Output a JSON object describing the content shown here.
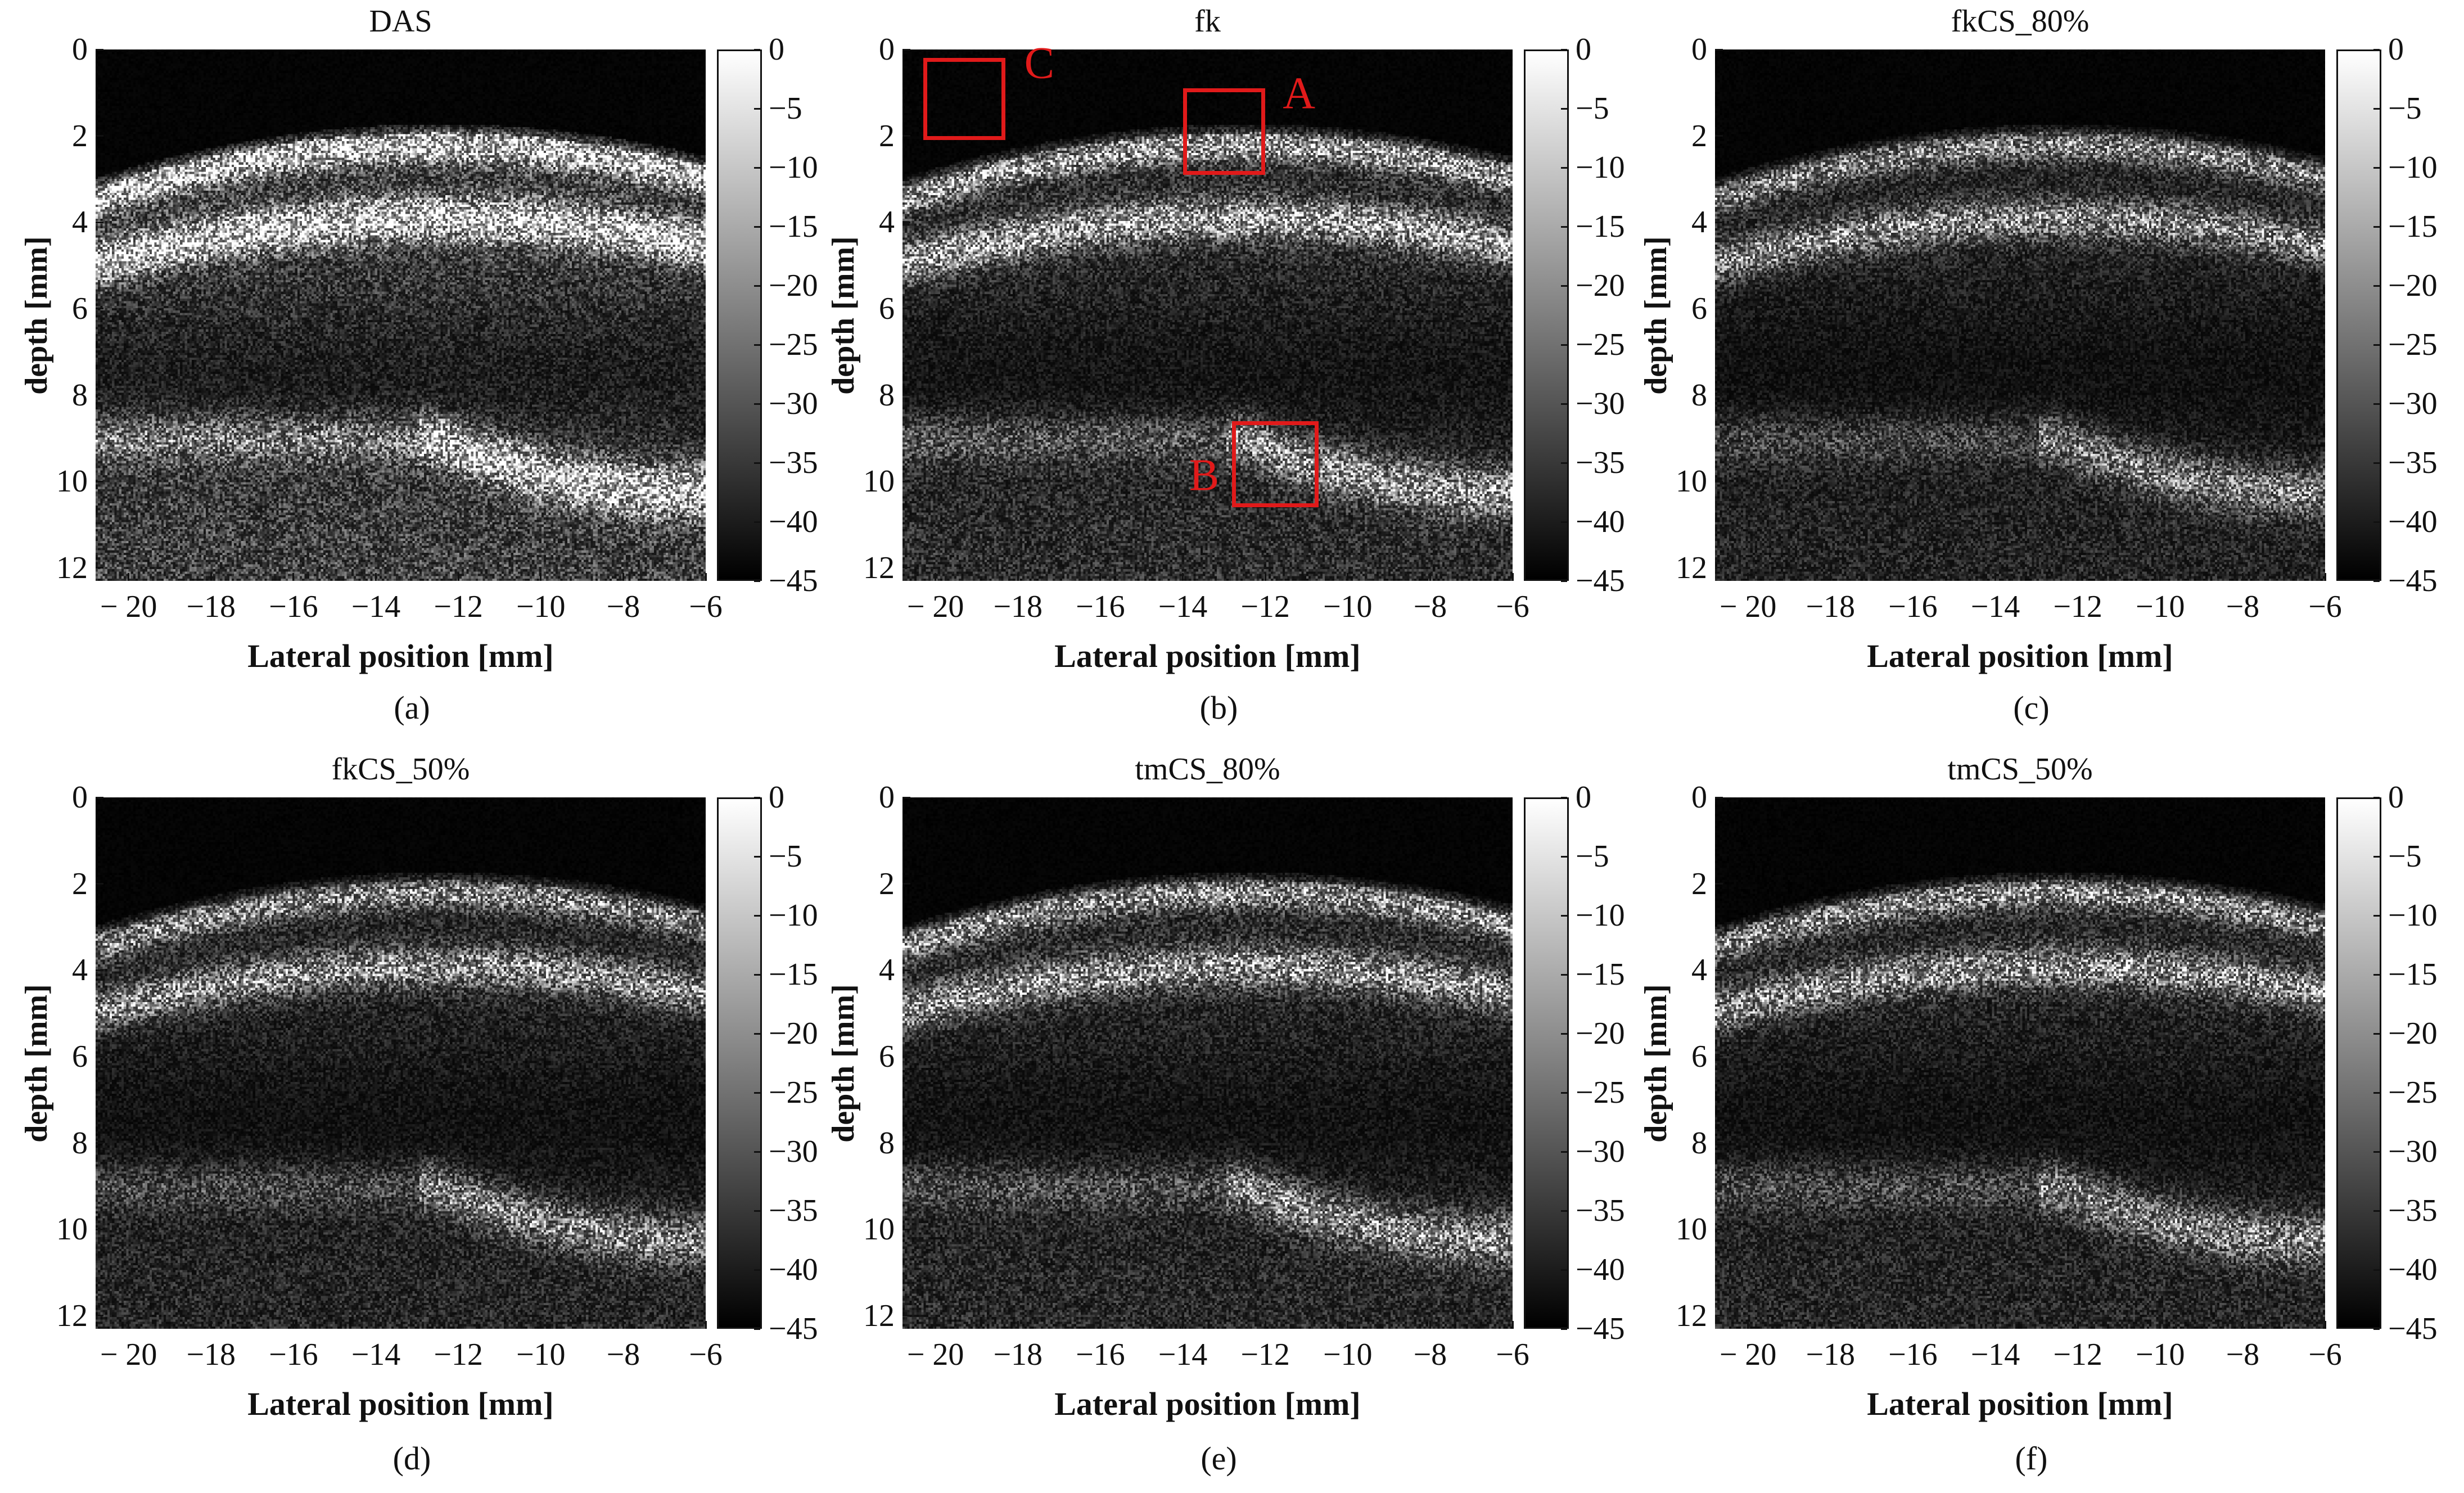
{
  "chart_data": [
    {
      "panel": "(a)",
      "title": "DAS",
      "type": "heatmap",
      "xlabel": "Lateral position [mm]",
      "ylabel": "depth [mm]",
      "xlim": [
        -20.8,
        -6
      ],
      "ylim": [
        12.3,
        0
      ],
      "xticks": [
        -20,
        -18,
        -16,
        -14,
        -12,
        -10,
        -8,
        -6
      ],
      "xtick_labels": [
        "− 20",
        "−18",
        "−16",
        "−14",
        "−12",
        "−10",
        "−8",
        "−6"
      ],
      "yticks": [
        0,
        2,
        4,
        6,
        8,
        10,
        12
      ],
      "ytick_labels": [
        "0",
        "2",
        "4",
        "6",
        "8",
        "10",
        "12"
      ],
      "colorbar": {
        "range": [
          -45,
          0
        ],
        "ticks": [
          0,
          -5,
          -10,
          -15,
          -20,
          -25,
          -30,
          -35,
          -40,
          -45
        ],
        "tick_labels": [
          "0",
          "−5",
          "−10",
          "−15",
          "−20",
          "−25",
          "−30",
          "−35",
          "−40",
          "−45"
        ]
      },
      "colormap": "gray"
    },
    {
      "panel": "(b)",
      "title": "fk",
      "type": "heatmap",
      "xlabel": "Lateral position [mm]",
      "ylabel": "depth [mm]",
      "xlim": [
        -20.8,
        -6
      ],
      "ylim": [
        12.3,
        0
      ],
      "xticks": [
        -20,
        -18,
        -16,
        -14,
        -12,
        -10,
        -8,
        -6
      ],
      "xtick_labels": [
        "− 20",
        "−18",
        "−16",
        "−14",
        "−12",
        "−10",
        "−8",
        "−6"
      ],
      "yticks": [
        0,
        2,
        4,
        6,
        8,
        10,
        12
      ],
      "ytick_labels": [
        "0",
        "2",
        "4",
        "6",
        "8",
        "10",
        "12"
      ],
      "colorbar": {
        "range": [
          -45,
          0
        ],
        "ticks": [
          0,
          -5,
          -10,
          -15,
          -20,
          -25,
          -30,
          -35,
          -40,
          -45
        ],
        "tick_labels": [
          "0",
          "−5",
          "−10",
          "−15",
          "−20",
          "−25",
          "−30",
          "−35",
          "−40",
          "−45"
        ]
      },
      "colormap": "gray",
      "annotations": [
        {
          "label": "A",
          "x_range": [
            -14,
            -12
          ],
          "y_range": [
            0.9,
            2.9
          ],
          "color": "#e11a1a"
        },
        {
          "label": "B",
          "x_range": [
            -12.8,
            -10.7
          ],
          "y_range": [
            8.6,
            10.6
          ],
          "color": "#e11a1a"
        },
        {
          "label": "C",
          "x_range": [
            -20.3,
            -18.3
          ],
          "y_range": [
            0.2,
            2.1
          ],
          "color": "#e11a1a"
        }
      ]
    },
    {
      "panel": "(c)",
      "title": "fkCS_80%",
      "type": "heatmap",
      "xlabel": "Lateral position [mm]",
      "ylabel": "depth [mm]",
      "xlim": [
        -20.8,
        -6
      ],
      "ylim": [
        12.3,
        0
      ],
      "xticks": [
        -20,
        -18,
        -16,
        -14,
        -12,
        -10,
        -8,
        -6
      ],
      "xtick_labels": [
        "− 20",
        "−18",
        "−16",
        "−14",
        "−12",
        "−10",
        "−8",
        "−6"
      ],
      "yticks": [
        0,
        2,
        4,
        6,
        8,
        10,
        12
      ],
      "ytick_labels": [
        "0",
        "2",
        "4",
        "6",
        "8",
        "10",
        "12"
      ],
      "colorbar": {
        "range": [
          -45,
          0
        ],
        "ticks": [
          0,
          -5,
          -10,
          -15,
          -20,
          -25,
          -30,
          -35,
          -40,
          -45
        ],
        "tick_labels": [
          "0",
          "−5",
          "−10",
          "−15",
          "−20",
          "−25",
          "−30",
          "−35",
          "−40",
          "−45"
        ]
      },
      "colormap": "gray"
    },
    {
      "panel": "(d)",
      "title": "fkCS_50%",
      "type": "heatmap",
      "xlabel": "Lateral position [mm]",
      "ylabel": "depth [mm]",
      "xlim": [
        -20.8,
        -6
      ],
      "ylim": [
        12.3,
        0
      ],
      "xticks": [
        -20,
        -18,
        -16,
        -14,
        -12,
        -10,
        -8,
        -6
      ],
      "xtick_labels": [
        "− 20",
        "−18",
        "−16",
        "−14",
        "−12",
        "−10",
        "−8",
        "−6"
      ],
      "yticks": [
        0,
        2,
        4,
        6,
        8,
        10,
        12
      ],
      "ytick_labels": [
        "0",
        "2",
        "4",
        "6",
        "8",
        "10",
        "12"
      ],
      "colorbar": {
        "range": [
          -45,
          0
        ],
        "ticks": [
          0,
          -5,
          -10,
          -15,
          -20,
          -25,
          -30,
          -35,
          -40,
          -45
        ],
        "tick_labels": [
          "0",
          "−5",
          "−10",
          "−15",
          "−20",
          "−25",
          "−30",
          "−35",
          "−40",
          "−45"
        ]
      },
      "colormap": "gray"
    },
    {
      "panel": "(e)",
      "title": "tmCS_80%",
      "type": "heatmap",
      "xlabel": "Lateral position [mm]",
      "ylabel": "depth [mm]",
      "xlim": [
        -20.8,
        -6
      ],
      "ylim": [
        12.3,
        0
      ],
      "xticks": [
        -20,
        -18,
        -16,
        -14,
        -12,
        -10,
        -8,
        -6
      ],
      "xtick_labels": [
        "− 20",
        "−18",
        "−16",
        "−14",
        "−12",
        "−10",
        "−8",
        "−6"
      ],
      "yticks": [
        0,
        2,
        4,
        6,
        8,
        10,
        12
      ],
      "ytick_labels": [
        "0",
        "2",
        "4",
        "6",
        "8",
        "10",
        "12"
      ],
      "colorbar": {
        "range": [
          -45,
          0
        ],
        "ticks": [
          0,
          -5,
          -10,
          -15,
          -20,
          -25,
          -30,
          -35,
          -40,
          -45
        ],
        "tick_labels": [
          "0",
          "−5",
          "−10",
          "−15",
          "−20",
          "−25",
          "−30",
          "−35",
          "−40",
          "−45"
        ]
      },
      "colormap": "gray"
    },
    {
      "panel": "(f)",
      "title": "tmCS_50%",
      "type": "heatmap",
      "xlabel": "Lateral position [mm]",
      "ylabel": "depth [mm]",
      "xlim": [
        -20.8,
        -6
      ],
      "ylim": [
        12.3,
        0
      ],
      "xticks": [
        -20,
        -18,
        -16,
        -14,
        -12,
        -10,
        -8,
        -6
      ],
      "xtick_labels": [
        "− 20",
        "−18",
        "−16",
        "−14",
        "−12",
        "−10",
        "−8",
        "−6"
      ],
      "yticks": [
        0,
        2,
        4,
        6,
        8,
        10,
        12
      ],
      "ytick_labels": [
        "0",
        "2",
        "4",
        "6",
        "8",
        "10",
        "12"
      ],
      "colorbar": {
        "range": [
          -45,
          0
        ],
        "ticks": [
          0,
          -5,
          -10,
          -15,
          -20,
          -25,
          -30,
          -35,
          -40,
          -45
        ],
        "tick_labels": [
          "0",
          "−5",
          "−10",
          "−15",
          "−20",
          "−25",
          "−30",
          "−35",
          "−40",
          "−45"
        ]
      },
      "colormap": "gray"
    }
  ]
}
